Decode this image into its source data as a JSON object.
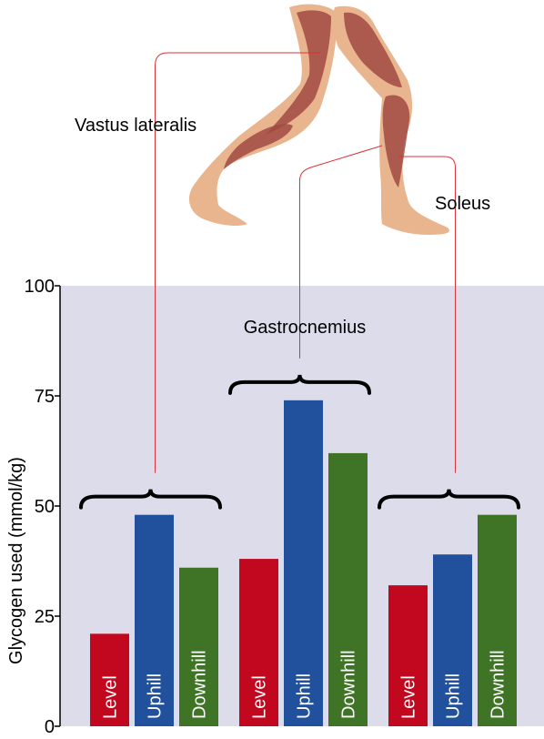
{
  "colors": {
    "plot_bg": "#dcdcea",
    "level": "#c1081f",
    "uphill": "#21509c",
    "downhill": "#3f7427",
    "leader": "#d9323a",
    "skin": "#e9b58f",
    "muscle": "#a24a43"
  },
  "illustration": {
    "icon": "running-legs-muscle-illustration"
  },
  "chart_data": {
    "type": "bar",
    "ylabel": "Glycogen used (mmol/kg)",
    "ylim": [
      0,
      100
    ],
    "yticks": [
      0,
      25,
      50,
      75,
      100
    ],
    "series_order": [
      "Level",
      "Uphill",
      "Downhill"
    ],
    "groups": [
      {
        "name": "Vastus lateralis",
        "values": [
          21,
          48,
          36
        ]
      },
      {
        "name": "Gastrocnemius",
        "values": [
          38,
          74,
          62
        ]
      },
      {
        "name": "Soleus",
        "values": [
          32,
          39,
          48
        ]
      }
    ],
    "grid": false,
    "legend": "none"
  }
}
